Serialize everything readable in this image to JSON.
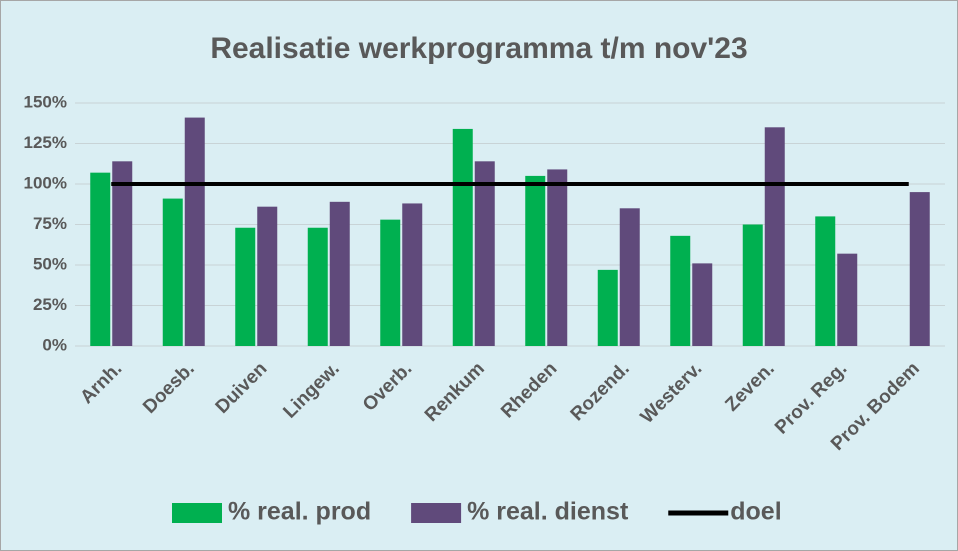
{
  "chart_data": {
    "type": "bar",
    "title": "Realisatie werkprogramma t/m nov'23",
    "categories": [
      "Arnh.",
      "Doesb.",
      "Duiven",
      "Lingew.",
      "Overb.",
      "Renkum",
      "Rheden",
      "Rozend.",
      "Westerv.",
      "Zeven.",
      "Prov. Reg.",
      "Prov. Bodem"
    ],
    "series": [
      {
        "name": "% real. prod",
        "color": "#00b050",
        "type": "bar",
        "values": [
          107,
          91,
          73,
          73,
          78,
          134,
          105,
          47,
          68,
          75,
          80,
          null
        ]
      },
      {
        "name": "% real. dienst",
        "color": "#604a7b",
        "type": "bar",
        "values": [
          114,
          141,
          86,
          89,
          88,
          114,
          109,
          85,
          51,
          135,
          57,
          95
        ]
      },
      {
        "name": "doel",
        "color": "#000000",
        "type": "line",
        "values": [
          100,
          100,
          100,
          100,
          100,
          100,
          100,
          100,
          100,
          100,
          100,
          100
        ]
      }
    ],
    "ylim": [
      0,
      150
    ],
    "yticks": [
      {
        "value": 0,
        "label": "0%"
      },
      {
        "value": 25,
        "label": "25%"
      },
      {
        "value": 50,
        "label": "50%"
      },
      {
        "value": 75,
        "label": "75%"
      },
      {
        "value": 100,
        "label": "100%"
      },
      {
        "value": 125,
        "label": "125%"
      },
      {
        "value": 150,
        "label": "150%"
      }
    ],
    "grid": true,
    "legend": "bottom"
  }
}
